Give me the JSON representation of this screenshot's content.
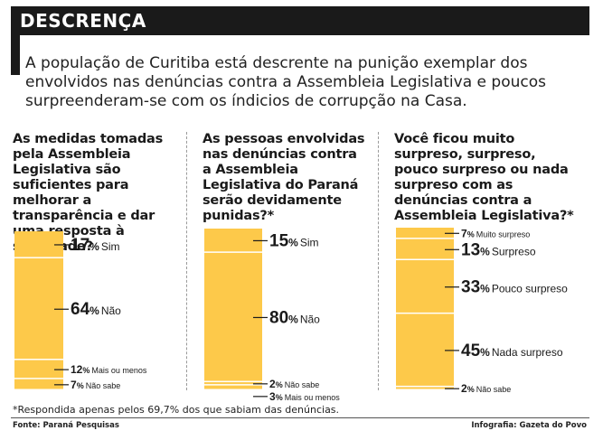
{
  "header": {
    "title": "DESCRENÇA"
  },
  "intro": "A população de Curitiba está descrente na punição exemplar dos envolvidos nas denúncias contra a Assembleia Legislativa e poucos surpreenderam-se com os índicios de corrupção na Casa.",
  "footnote": "*Respondida apenas pelos 69,7% dos que sabiam das denúncias.",
  "source": "Fonte: Paraná Pesquisas",
  "credit": "Infografia: Gazeta do Povo",
  "colors": {
    "bar": "#fdc94a",
    "text": "#1a1a1a",
    "header": "#1a1a1a"
  },
  "chart_data": [
    {
      "type": "bar",
      "stacked": true,
      "title": "As medidas tomadas pela Assembleia Legislativa são suficientes para melhorar a transparência e dar uma resposta à sociedade?",
      "categories": [
        "Sim",
        "Não",
        "Mais ou menos",
        "Não sabe"
      ],
      "values": [
        17,
        64,
        12,
        7
      ],
      "value_labels": [
        "17",
        "64",
        "12",
        "7"
      ],
      "unit": "%"
    },
    {
      "type": "bar",
      "stacked": true,
      "title": "As pessoas envolvidas nas denúncias contra a Assembleia Legislativa do Paraná serão devidamente punidas?*",
      "categories": [
        "Sim",
        "Não",
        "Não sabe",
        "Mais ou menos"
      ],
      "values": [
        15,
        80,
        2,
        3
      ],
      "value_labels": [
        "15",
        "80",
        "2",
        "3"
      ],
      "unit": "%"
    },
    {
      "type": "bar",
      "stacked": true,
      "title": "Você ficou muito surpreso, surpreso, pouco surpreso ou nada surpreso com as denúncias contra a Assembleia Legislativa?*",
      "categories": [
        "Muito surpreso",
        "Surpreso",
        "Pouco surpreso",
        "Nada surpreso",
        "Não sabe"
      ],
      "values": [
        7,
        13,
        33,
        45,
        2
      ],
      "value_labels": [
        "7",
        "13",
        "33",
        "45",
        "2"
      ],
      "unit": "%"
    }
  ]
}
